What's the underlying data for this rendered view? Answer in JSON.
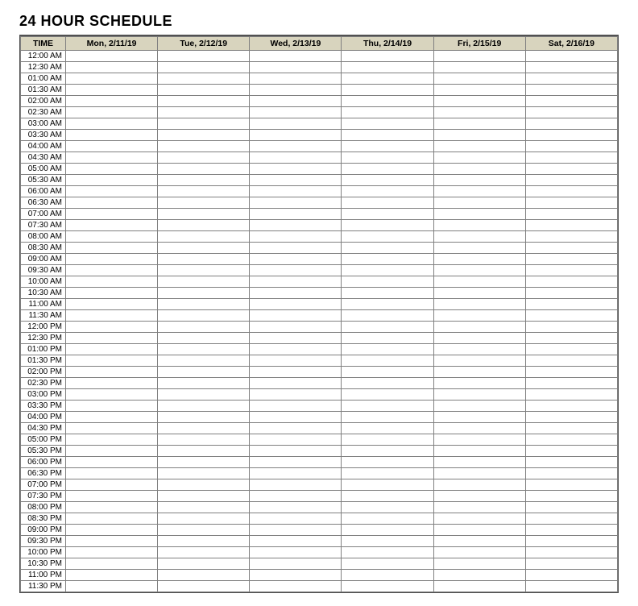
{
  "title": "24 HOUR SCHEDULE",
  "header_bg": "#d8d4be",
  "border_color": "#808080",
  "columns": [
    {
      "key": "time",
      "label": "TIME"
    },
    {
      "key": "mon",
      "label": "Mon, 2/11/19"
    },
    {
      "key": "tue",
      "label": "Tue, 2/12/19"
    },
    {
      "key": "wed",
      "label": "Wed, 2/13/19"
    },
    {
      "key": "thu",
      "label": "Thu, 2/14/19"
    },
    {
      "key": "fri",
      "label": "Fri, 2/15/19"
    },
    {
      "key": "sat",
      "label": "Sat, 2/16/19"
    }
  ],
  "times": [
    "12:00 AM",
    "12:30 AM",
    "01:00 AM",
    "01:30 AM",
    "02:00 AM",
    "02:30 AM",
    "03:00 AM",
    "03:30 AM",
    "04:00 AM",
    "04:30 AM",
    "05:00 AM",
    "05:30 AM",
    "06:00 AM",
    "06:30 AM",
    "07:00 AM",
    "07:30 AM",
    "08:00 AM",
    "08:30 AM",
    "09:00 AM",
    "09:30 AM",
    "10:00 AM",
    "10:30 AM",
    "11:00 AM",
    "11:30 AM",
    "12:00 PM",
    "12:30 PM",
    "01:00 PM",
    "01:30 PM",
    "02:00 PM",
    "02:30 PM",
    "03:00 PM",
    "03:30 PM",
    "04:00 PM",
    "04:30 PM",
    "05:00 PM",
    "05:30 PM",
    "06:00 PM",
    "06:30 PM",
    "07:00 PM",
    "07:30 PM",
    "08:00 PM",
    "08:30 PM",
    "09:00 PM",
    "09:30 PM",
    "10:00 PM",
    "10:30 PM",
    "11:00 PM",
    "11:30 PM"
  ]
}
